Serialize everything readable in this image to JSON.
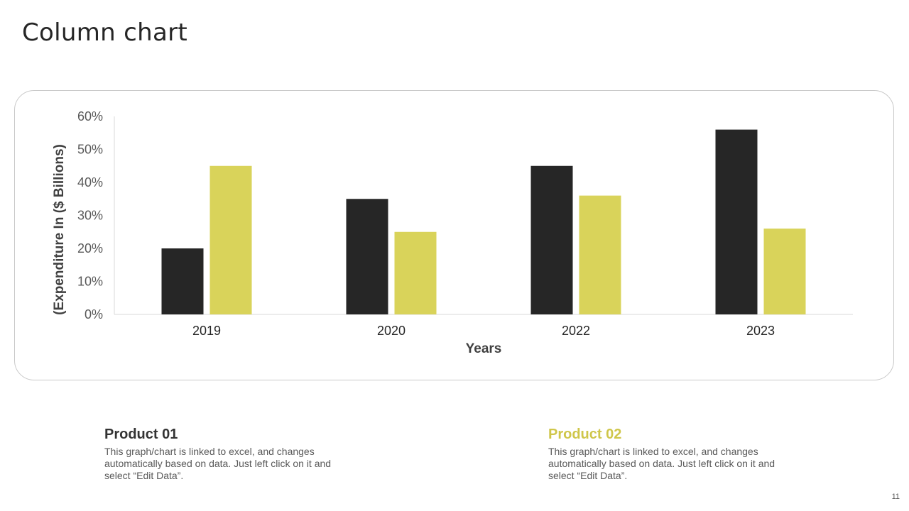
{
  "title": "Column chart",
  "chart_data": {
    "type": "bar",
    "categories": [
      "2019",
      "2020",
      "2022",
      "2023"
    ],
    "series": [
      {
        "name": "Product 01",
        "values": [
          20,
          35,
          45,
          56
        ],
        "color": "#262626"
      },
      {
        "name": "Product 02",
        "values": [
          45,
          25,
          36,
          26
        ],
        "color": "#d9d35a"
      }
    ],
    "xlabel": "Years",
    "ylabel": "(Expenditure In ($ Billions)",
    "ylim": [
      0,
      60
    ],
    "yticks": [
      0,
      10,
      20,
      30,
      40,
      50,
      60
    ],
    "ytick_labels": [
      "0%",
      "10%",
      "20%",
      "30%",
      "40%",
      "50%",
      "60%"
    ],
    "grid": false
  },
  "legend": [
    {
      "title": "Product 01",
      "color": "#333333",
      "description": "This graph/chart is linked to excel, and changes automatically based on data. Just left click on it and select “Edit Data”."
    },
    {
      "title": "Product 02",
      "color": "#cfc64a",
      "description": "This graph/chart is linked to excel, and changes automatically based on data. Just left click on it and select “Edit Data”."
    }
  ],
  "page_number": "11"
}
